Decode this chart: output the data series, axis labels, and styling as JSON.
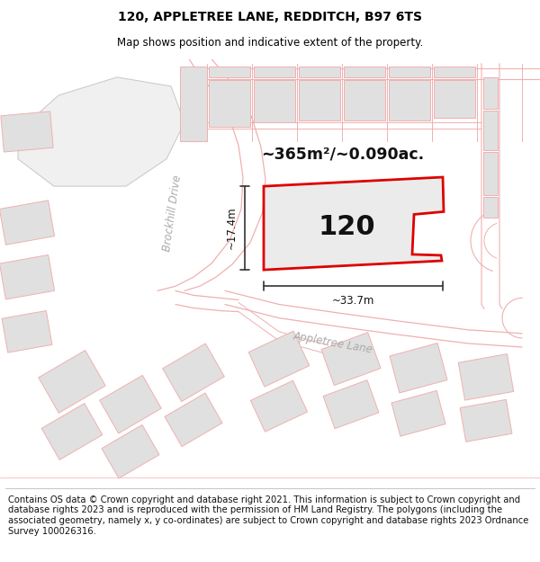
{
  "title_line1": "120, APPLETREE LANE, REDDITCH, B97 6TS",
  "title_line2": "Map shows position and indicative extent of the property.",
  "footer_text": "Contains OS data © Crown copyright and database right 2021. This information is subject to Crown copyright and database rights 2023 and is reproduced with the permission of HM Land Registry. The polygons (including the associated geometry, namely x, y co-ordinates) are subject to Crown copyright and database rights 2023 Ordnance Survey 100026316.",
  "area_text": "~365m²/~0.090ac.",
  "property_number": "120",
  "dim_width": "~33.7m",
  "dim_height": "~17.4m",
  "road_label1": "Brockhill Drive",
  "road_label2": "Appletree Lane",
  "bg_color": "#ffffff",
  "map_bg": "#ffffff",
  "plot_fill": "#e8e8e8",
  "plot_edge": "#dd0000",
  "road_line": "#f0b0b0",
  "gray_line": "#cccccc",
  "neighbor_fill": "#e0e0e0",
  "neighbor_edge": "#f0b0b0",
  "title_fontsize": 10,
  "footer_fontsize": 7.2
}
